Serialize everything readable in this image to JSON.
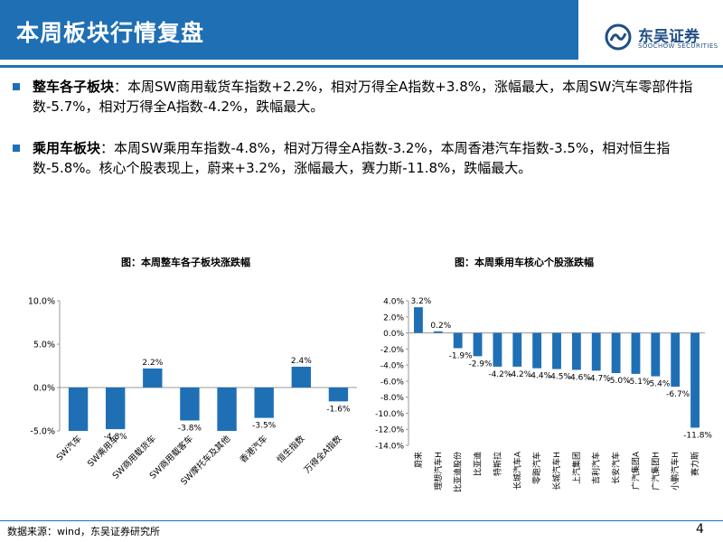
{
  "header": {
    "title": "本周板块行情复盘"
  },
  "logo": {
    "cn": "东吴证券",
    "en": "SOOCHOW SECURITIES"
  },
  "bullets": [
    {
      "lead": "整车各子板块",
      "text": "：本周SW商用载货车指数+2.2%，相对万得全A指数+3.8%，涨幅最大，本周SW汽车零部件指数-5.7%，相对万得全A指数-4.2%，跌幅最大。"
    },
    {
      "lead": "乘用车板块",
      "text": "：本周SW乘用车指数-4.8%，相对万得全A指数-3.2%，本周香港汽车指数-3.5%，相对恒生指数-5.8%。核心个股表现上，蔚来+3.2%，涨幅最大，赛力斯-11.8%，跌幅最大。"
    }
  ],
  "chart_data": [
    {
      "type": "bar",
      "title": "图：本周整车各子板块涨跌幅",
      "categories": [
        "SW汽车",
        "SW乘用车",
        "SW商用载货车",
        "SW商用载客车",
        "SW摩托车及其他",
        "香港汽车",
        "恒生指数",
        "万得全A指数"
      ],
      "values": [
        -5.0,
        -4.8,
        2.2,
        -3.8,
        -5.0,
        -3.5,
        2.4,
        -1.6
      ],
      "labels": [
        "",
        "-4.8%",
        "2.2%",
        "-3.8%",
        "",
        "-3.5%",
        "2.4%",
        "-1.6%"
      ],
      "yticks": [
        "10.0%",
        "5.0%",
        "0.0%",
        "-5.0%"
      ],
      "ylim": [
        -5,
        10
      ],
      "color": "#1f6fb5"
    },
    {
      "type": "bar",
      "title": "图：本周乘用车核心个股涨跌幅",
      "categories": [
        "蔚来",
        "理想汽车H",
        "比亚迪股份",
        "比亚迪",
        "特斯拉",
        "长城汽车A",
        "零跑汽车",
        "长城汽车H",
        "上汽集团",
        "吉利汽车",
        "长安汽车",
        "广汽集团A",
        "广汽集团H",
        "小鹏汽车H",
        "赛力斯"
      ],
      "values": [
        3.2,
        0.2,
        -1.9,
        -2.9,
        -4.2,
        -4.2,
        -4.4,
        -4.5,
        -4.6,
        -4.7,
        -5.0,
        -5.1,
        -5.4,
        -6.7,
        -11.8
      ],
      "labels": [
        "3.2%",
        "0.2%",
        "-1.9%",
        "-2.9%",
        "-4.2%",
        "-4.2%",
        "-4.4%",
        "-4.5%",
        "-4.6%",
        "-4.7%",
        "-5.0%",
        "-5.1%",
        "-5.4%",
        "-6.7%",
        "-11.8%"
      ],
      "yticks": [
        "4.0%",
        "2.0%",
        "0.0%",
        "-2.0%",
        "-4.0%",
        "-6.0%",
        "-8.0%",
        "-10.0%",
        "-12.0%",
        "-14.0%"
      ],
      "ylim": [
        -14,
        4
      ],
      "color": "#1f6fb5"
    }
  ],
  "footer": {
    "source": "数据来源：wind，东吴证券研究所",
    "page": "4"
  }
}
